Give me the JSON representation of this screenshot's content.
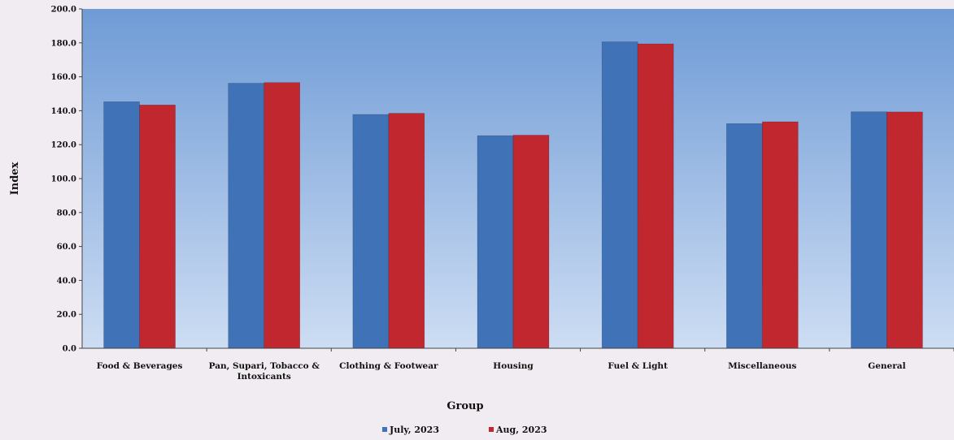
{
  "chart_data": {
    "type": "bar",
    "title": "",
    "xlabel": "Group",
    "ylabel": "Index",
    "ylim": [
      0,
      200
    ],
    "yticks": [
      "0.0",
      "20.0",
      "40.0",
      "60.0",
      "80.0",
      "100.0",
      "120.0",
      "140.0",
      "160.0",
      "180.0",
      "200.0"
    ],
    "grid": false,
    "legend_position": "bottom",
    "categories": [
      [
        "Food & Beverages"
      ],
      [
        "Pan, Supari, Tobacco &",
        "Intoxicants"
      ],
      [
        "Clothing & Footwear"
      ],
      [
        "Housing"
      ],
      [
        "Fuel & Light"
      ],
      [
        "Miscellaneous"
      ],
      [
        "General"
      ]
    ],
    "series": [
      {
        "name": "July, 2023",
        "color": "#3f72b6",
        "values": [
          145.3,
          156.2,
          137.8,
          125.3,
          180.6,
          132.4,
          139.4
        ]
      },
      {
        "name": "Aug, 2023",
        "color": "#c0272e",
        "values": [
          143.4,
          156.6,
          138.5,
          125.6,
          179.4,
          133.5,
          139.3
        ]
      }
    ],
    "plot_background": [
      "#6f9bd6",
      "#cdddf3"
    ]
  }
}
